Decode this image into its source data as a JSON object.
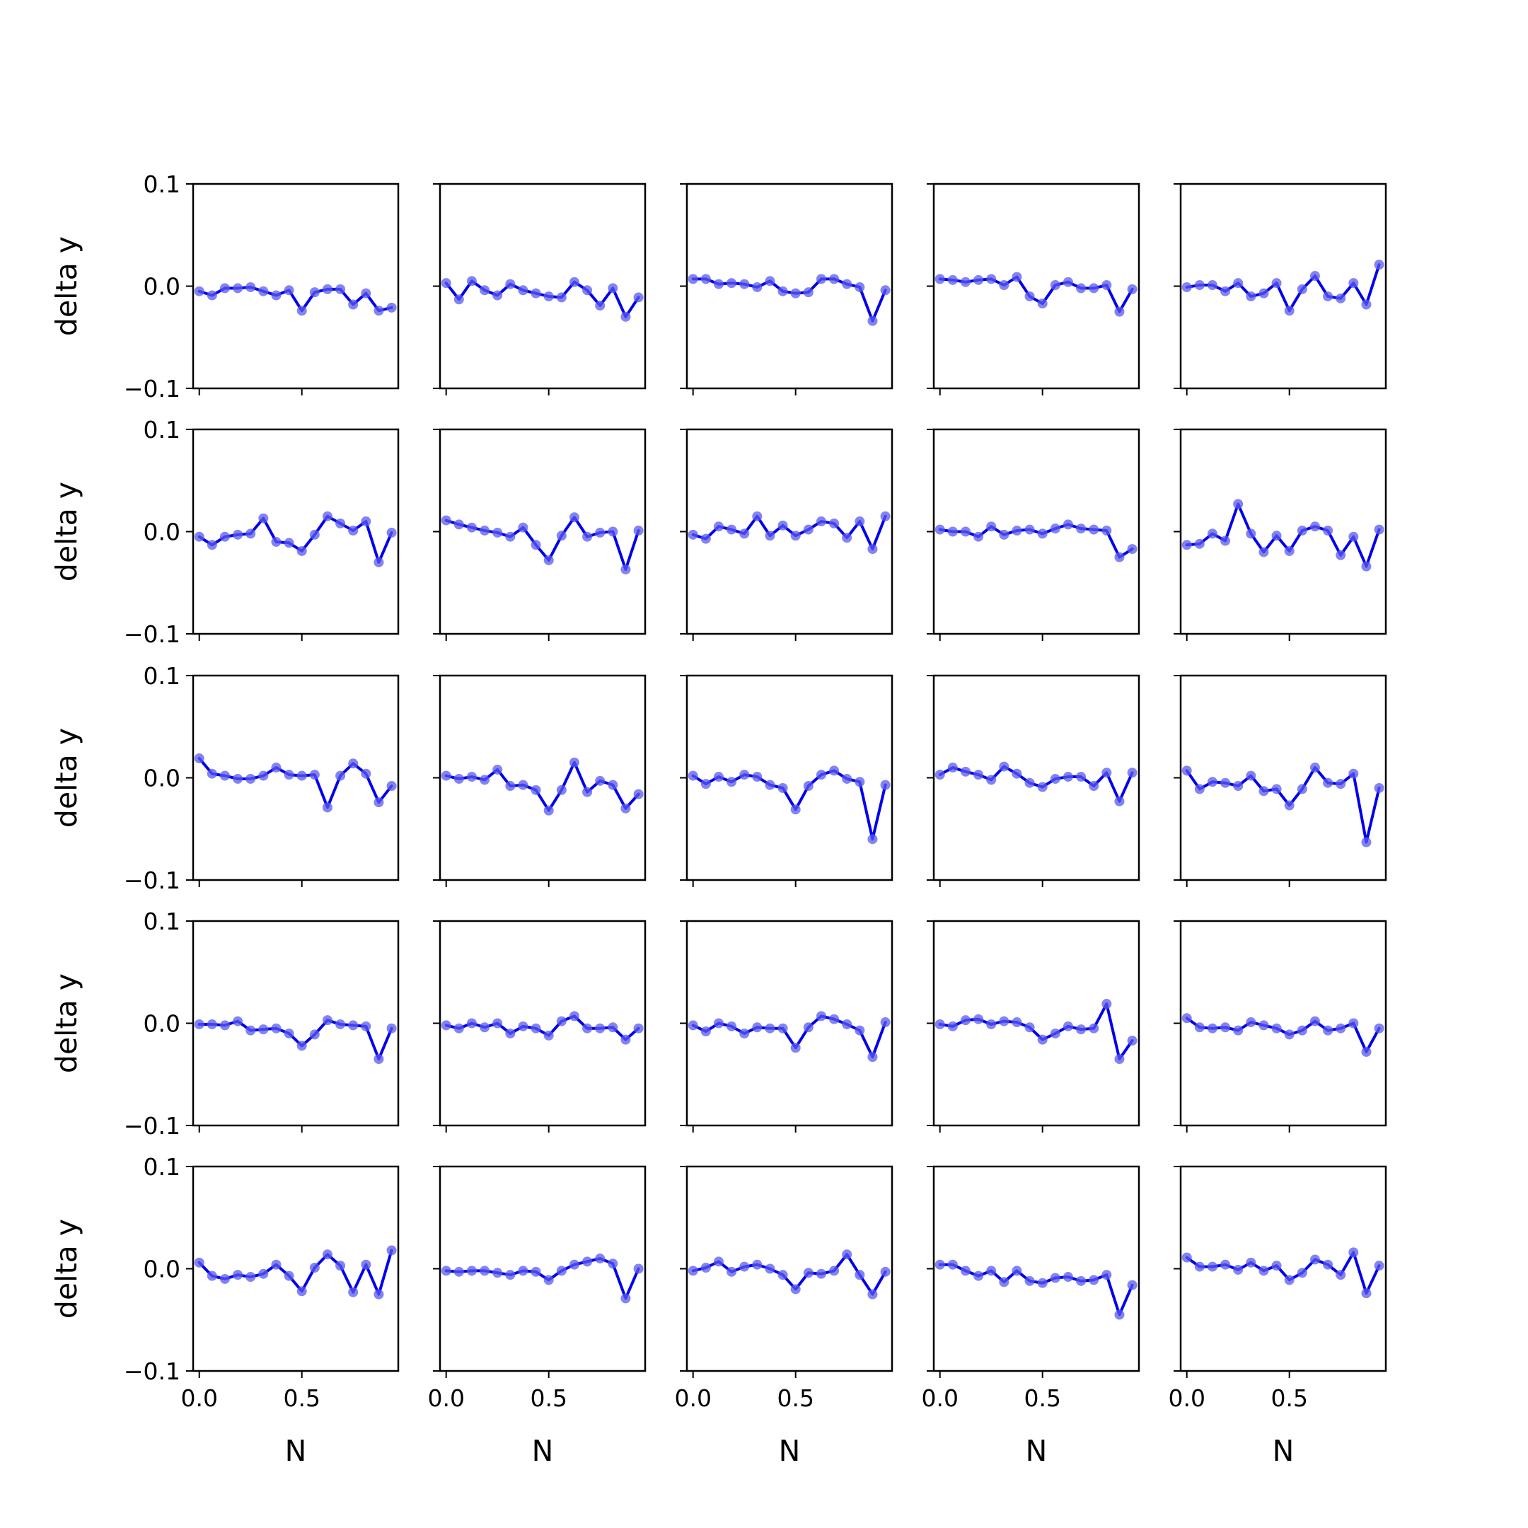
{
  "chart_data": {
    "type": "line",
    "grid": false,
    "rows": 5,
    "cols": 5,
    "x": [
      0.0,
      0.0625,
      0.125,
      0.1875,
      0.25,
      0.3125,
      0.375,
      0.4375,
      0.5,
      0.5625,
      0.625,
      0.6875,
      0.75,
      0.8125,
      0.875,
      0.9375
    ],
    "xlim": [
      -0.03,
      0.97
    ],
    "ylim": [
      -0.1,
      0.1
    ],
    "xticks": [
      0.0,
      0.5
    ],
    "xtick_labels": [
      "0.0",
      "0.5"
    ],
    "yticks": [
      0.1,
      0.0,
      -0.1
    ],
    "ytick_labels": [
      "0.1",
      "0.0",
      "−0.1"
    ],
    "xlabel": "N",
    "ylabel": "delta y",
    "line_color": "#0000ee",
    "marker_color": "#5a5aee",
    "panels": [
      {
        "values": [
          -0.005,
          -0.009,
          -0.002,
          -0.002,
          -0.001,
          -0.005,
          -0.009,
          -0.004,
          -0.024,
          -0.006,
          -0.003,
          -0.003,
          -0.018,
          -0.007,
          -0.024,
          -0.021
        ]
      },
      {
        "values": [
          0.003,
          -0.013,
          0.005,
          -0.004,
          -0.009,
          0.002,
          -0.004,
          -0.007,
          -0.01,
          -0.011,
          0.004,
          -0.004,
          -0.019,
          -0.002,
          -0.03,
          -0.011
        ]
      },
      {
        "values": [
          0.007,
          0.007,
          0.002,
          0.003,
          0.002,
          -0.001,
          0.005,
          -0.005,
          -0.007,
          -0.006,
          0.007,
          0.007,
          0.002,
          -0.001,
          -0.034,
          -0.004
        ]
      },
      {
        "values": [
          0.007,
          0.006,
          0.004,
          0.006,
          0.007,
          0.001,
          0.009,
          -0.01,
          -0.017,
          0.001,
          0.004,
          -0.002,
          -0.002,
          0.001,
          -0.025,
          -0.003
        ]
      },
      {
        "values": [
          -0.001,
          0.001,
          0.001,
          -0.005,
          0.003,
          -0.01,
          -0.007,
          0.003,
          -0.024,
          -0.003,
          0.01,
          -0.01,
          -0.012,
          0.003,
          -0.018,
          0.021
        ]
      },
      {
        "values": [
          -0.005,
          -0.013,
          -0.005,
          -0.003,
          -0.002,
          0.013,
          -0.01,
          -0.011,
          -0.019,
          -0.003,
          0.015,
          0.008,
          0.001,
          0.01,
          -0.03,
          -0.001
        ]
      },
      {
        "values": [
          0.011,
          0.007,
          0.004,
          0.001,
          -0.001,
          -0.005,
          0.004,
          -0.013,
          -0.028,
          -0.004,
          0.014,
          -0.005,
          -0.001,
          0.0,
          -0.037,
          0.001
        ]
      },
      {
        "values": [
          -0.003,
          -0.007,
          0.005,
          0.002,
          -0.002,
          0.015,
          -0.004,
          0.006,
          -0.004,
          0.002,
          0.01,
          0.008,
          -0.006,
          0.01,
          -0.017,
          0.015
        ]
      },
      {
        "values": [
          0.002,
          0.0,
          0.0,
          -0.005,
          0.005,
          -0.003,
          0.001,
          0.002,
          -0.002,
          0.003,
          0.007,
          0.003,
          0.002,
          0.001,
          -0.025,
          -0.017
        ]
      },
      {
        "values": [
          -0.013,
          -0.012,
          -0.002,
          -0.009,
          0.027,
          -0.002,
          -0.02,
          -0.004,
          -0.019,
          0.001,
          0.005,
          0.001,
          -0.023,
          -0.005,
          -0.034,
          0.002
        ]
      },
      {
        "values": [
          0.019,
          0.004,
          0.002,
          -0.001,
          -0.001,
          0.002,
          0.01,
          0.003,
          0.002,
          0.003,
          -0.029,
          0.002,
          0.014,
          0.004,
          -0.024,
          -0.008
        ]
      },
      {
        "values": [
          0.002,
          -0.001,
          0.001,
          -0.002,
          0.008,
          -0.008,
          -0.007,
          -0.012,
          -0.032,
          -0.012,
          0.015,
          -0.014,
          -0.003,
          -0.007,
          -0.03,
          -0.016
        ]
      },
      {
        "values": [
          0.002,
          -0.006,
          0.001,
          -0.004,
          0.003,
          0.001,
          -0.007,
          -0.01,
          -0.031,
          -0.008,
          0.003,
          0.007,
          -0.001,
          -0.004,
          -0.06,
          -0.007
        ]
      },
      {
        "values": [
          0.003,
          0.01,
          0.006,
          0.003,
          -0.002,
          0.011,
          0.004,
          -0.005,
          -0.009,
          -0.001,
          0.001,
          0.001,
          -0.008,
          0.005,
          -0.023,
          0.005
        ]
      },
      {
        "values": [
          0.007,
          -0.011,
          -0.004,
          -0.005,
          -0.008,
          0.002,
          -0.013,
          -0.011,
          -0.027,
          -0.011,
          0.01,
          -0.005,
          -0.006,
          0.004,
          -0.063,
          -0.01
        ]
      },
      {
        "values": [
          -0.001,
          -0.001,
          -0.002,
          0.002,
          -0.007,
          -0.006,
          -0.005,
          -0.01,
          -0.022,
          -0.011,
          0.003,
          -0.001,
          -0.002,
          -0.003,
          -0.035,
          -0.005
        ]
      },
      {
        "values": [
          -0.002,
          -0.005,
          0.0,
          -0.004,
          0.0,
          -0.01,
          -0.003,
          -0.005,
          -0.012,
          0.002,
          0.007,
          -0.005,
          -0.005,
          -0.004,
          -0.016,
          -0.005
        ]
      },
      {
        "values": [
          -0.002,
          -0.008,
          0.0,
          -0.003,
          -0.01,
          -0.004,
          -0.005,
          -0.005,
          -0.024,
          -0.004,
          0.007,
          0.004,
          -0.001,
          -0.007,
          -0.033,
          0.001
        ]
      },
      {
        "values": [
          -0.001,
          -0.003,
          0.003,
          0.004,
          -0.001,
          0.002,
          0.001,
          -0.004,
          -0.016,
          -0.01,
          -0.003,
          -0.006,
          -0.005,
          0.019,
          -0.035,
          -0.017
        ]
      },
      {
        "values": [
          0.005,
          -0.004,
          -0.005,
          -0.004,
          -0.007,
          0.001,
          -0.002,
          -0.005,
          -0.011,
          -0.007,
          0.002,
          -0.007,
          -0.005,
          0.0,
          -0.028,
          -0.005
        ]
      },
      {
        "values": [
          0.006,
          -0.007,
          -0.01,
          -0.006,
          -0.008,
          -0.005,
          0.004,
          -0.007,
          -0.022,
          0.001,
          0.014,
          0.003,
          -0.023,
          0.004,
          -0.025,
          0.018
        ]
      },
      {
        "values": [
          -0.002,
          -0.003,
          -0.002,
          -0.002,
          -0.004,
          -0.006,
          -0.002,
          -0.003,
          -0.011,
          -0.002,
          0.004,
          0.007,
          0.01,
          0.005,
          -0.029,
          0.0
        ]
      },
      {
        "values": [
          -0.002,
          0.001,
          0.007,
          -0.003,
          0.002,
          0.004,
          0.0,
          -0.006,
          -0.02,
          -0.004,
          -0.005,
          -0.002,
          0.014,
          -0.006,
          -0.025,
          -0.003
        ]
      },
      {
        "values": [
          0.004,
          0.004,
          -0.002,
          -0.007,
          -0.002,
          -0.013,
          -0.002,
          -0.012,
          -0.014,
          -0.009,
          -0.008,
          -0.012,
          -0.011,
          -0.006,
          -0.045,
          -0.016
        ]
      },
      {
        "values": [
          0.011,
          0.002,
          0.002,
          0.004,
          -0.001,
          0.006,
          -0.002,
          0.003,
          -0.011,
          -0.004,
          0.009,
          0.004,
          -0.006,
          0.016,
          -0.024,
          0.003
        ]
      }
    ]
  }
}
